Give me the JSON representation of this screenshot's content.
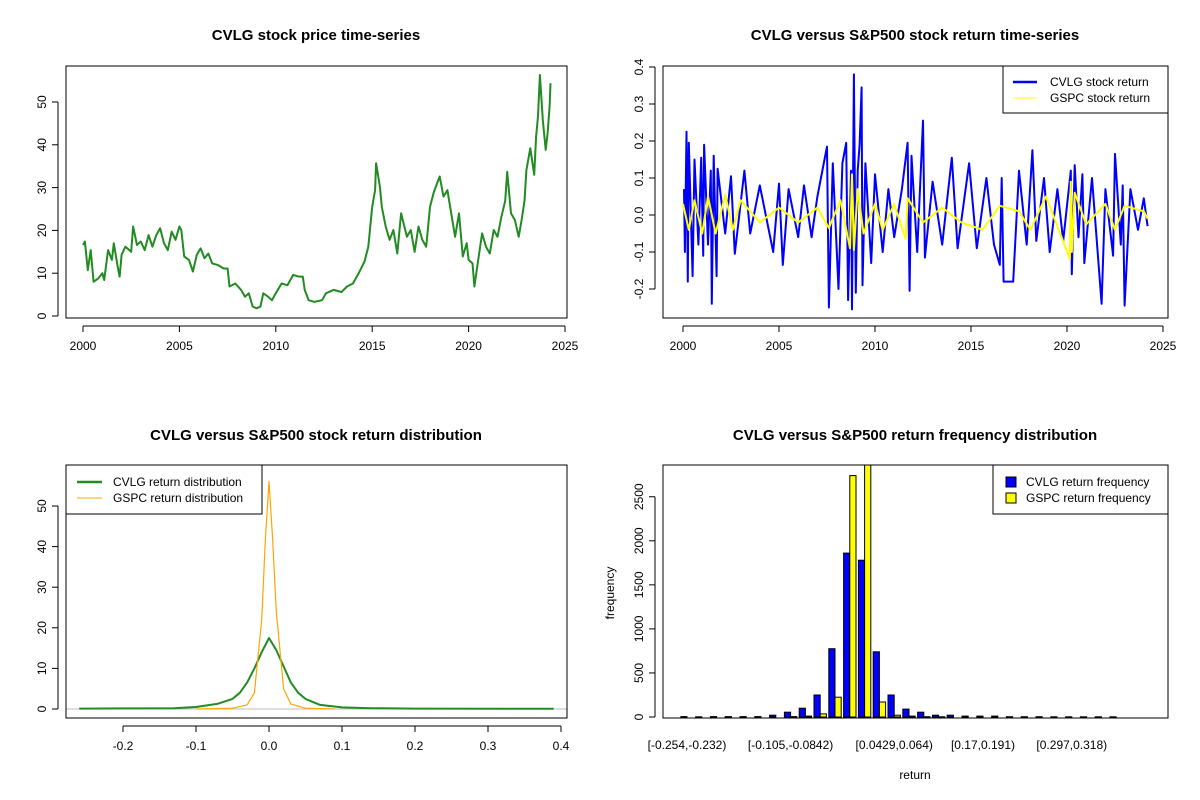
{
  "chart_data": [
    {
      "type": "line",
      "title": "CVLG stock price time-series",
      "xlabel": "",
      "ylabel": "",
      "xlim": [
        1999.2,
        2025.2
      ],
      "ylim": [
        0,
        58
      ],
      "x_ticks": [
        2000,
        2005,
        2010,
        2015,
        2020,
        2025
      ],
      "y_ticks": [
        0,
        10,
        20,
        30,
        40,
        50
      ],
      "colors": {
        "CVLG": "#228b22"
      },
      "series": [
        {
          "x": [
            2000.0,
            2000.1,
            2000.25,
            2000.4,
            2000.55,
            2000.8,
            2001.0,
            2001.1,
            2001.3,
            2001.5,
            2001.6,
            2001.8,
            2001.9,
            2002.0,
            2002.2,
            2002.5,
            2002.6,
            2002.8,
            2003.0,
            2003.2,
            2003.4,
            2003.6,
            2003.8,
            2004.0,
            2004.2,
            2004.4,
            2004.6,
            2004.8,
            2005.0,
            2005.1,
            2005.25,
            2005.5,
            2005.7,
            2005.9,
            2006.1,
            2006.3,
            2006.5,
            2006.7,
            2007.0,
            2007.3,
            2007.5,
            2007.6,
            2007.9,
            2008.2,
            2008.4,
            2008.6,
            2008.8,
            2009.0,
            2009.2,
            2009.35,
            2009.6,
            2009.8,
            2010.0,
            2010.3,
            2010.6,
            2010.9,
            2011.2,
            2011.4,
            2011.5,
            2011.7,
            2012.0,
            2012.4,
            2012.6,
            2013.0,
            2013.4,
            2013.7,
            2014.0,
            2014.3,
            2014.6,
            2014.8,
            2015.0,
            2015.15,
            2015.2,
            2015.4,
            2015.5,
            2015.7,
            2015.9,
            2016.1,
            2016.3,
            2016.5,
            2016.8,
            2017.0,
            2017.2,
            2017.4,
            2017.6,
            2017.8,
            2018.0,
            2018.2,
            2018.5,
            2018.7,
            2018.9,
            2019.1,
            2019.3,
            2019.5,
            2019.7,
            2019.9,
            2020.0,
            2020.2,
            2020.3,
            2020.5,
            2020.7,
            2020.9,
            2021.1,
            2021.3,
            2021.5,
            2021.7,
            2021.9,
            2022.0,
            2022.2,
            2022.4,
            2022.6,
            2022.75,
            2022.9,
            2023.0,
            2023.2,
            2023.4,
            2023.5,
            2023.6,
            2023.7,
            2023.85,
            2024.0,
            2024.1,
            2024.2,
            2024.25
          ],
          "y": [
            16.6,
            17.4,
            10.7,
            15.4,
            8.0,
            8.8,
            10.0,
            8.4,
            15.4,
            13.1,
            17.0,
            11.5,
            9.2,
            14.3,
            16.2,
            15.0,
            20.9,
            16.6,
            17.4,
            15.4,
            18.9,
            16.2,
            18.9,
            20.5,
            17.0,
            15.4,
            19.7,
            17.8,
            20.9,
            20.1,
            13.9,
            13.1,
            10.4,
            14.3,
            15.8,
            13.5,
            14.6,
            12.3,
            11.9,
            11.1,
            11.1,
            6.9,
            7.6,
            6.1,
            4.5,
            5.3,
            2.2,
            1.8,
            2.2,
            5.3,
            4.5,
            3.7,
            5.3,
            7.6,
            7.2,
            9.6,
            9.2,
            9.2,
            6.1,
            3.7,
            3.3,
            3.7,
            5.3,
            6.1,
            5.6,
            6.9,
            7.6,
            10.0,
            12.7,
            16.2,
            25.5,
            29.4,
            35.7,
            30.2,
            25.5,
            20.9,
            17.8,
            20.1,
            14.6,
            24.0,
            18.5,
            20.1,
            15.0,
            20.9,
            17.8,
            16.2,
            25.5,
            29.0,
            32.6,
            27.9,
            29.4,
            24.0,
            18.5,
            24.0,
            13.9,
            17.0,
            13.1,
            12.3,
            6.9,
            13.1,
            19.3,
            16.2,
            14.6,
            20.1,
            18.5,
            23.2,
            26.9,
            33.7,
            24.0,
            22.4,
            18.5,
            22.4,
            26.9,
            34.1,
            39.2,
            33.0,
            41.9,
            46.7,
            56.3,
            45.8,
            38.8,
            42.7,
            48.9,
            54.4
          ]
        }
      ]
    },
    {
      "type": "line",
      "title": "CVLG versus S&P500 stock return time-series",
      "xlabel": "",
      "ylabel": "",
      "xlim": [
        1999.0,
        2025.2
      ],
      "ylim": [
        -0.27,
        0.41
      ],
      "x_ticks": [
        2000,
        2005,
        2010,
        2015,
        2020,
        2025
      ],
      "y_ticks": [
        -0.2,
        -0.1,
        0.0,
        0.1,
        0.2,
        0.3,
        0.4
      ],
      "y_tick_labels": [
        "-0.2",
        "-0.1",
        "0.0",
        "0.1",
        "0.2",
        "0.3",
        "0.4"
      ],
      "legend": {
        "position": "top-right",
        "entries": [
          "CVLG stock return",
          "GSPC stock return"
        ]
      },
      "colors": {
        "CVLG": "#0000ff",
        "GSPC": "#ffff00"
      },
      "series": [
        {
          "name": "CVLG stock return",
          "x": [
            2000.05,
            2000.1,
            2000.18,
            2000.25,
            2000.3,
            2000.5,
            2000.6,
            2000.8,
            2000.95,
            2001.05,
            2001.1,
            2001.3,
            2001.45,
            2001.5,
            2001.6,
            2001.75,
            2001.8,
            2002.2,
            2002.5,
            2002.7,
            2003.2,
            2003.5,
            2004.0,
            2004.7,
            2005.0,
            2005.2,
            2005.5,
            2006.0,
            2006.3,
            2006.7,
            2007.0,
            2007.5,
            2007.6,
            2007.8,
            2008.1,
            2008.3,
            2008.5,
            2008.6,
            2008.75,
            2008.8,
            2008.9,
            2009.0,
            2009.1,
            2009.2,
            2009.3,
            2009.35,
            2009.5,
            2009.8,
            2010.0,
            2010.4,
            2010.7,
            2011.0,
            2011.4,
            2011.7,
            2011.8,
            2011.9,
            2012.2,
            2012.5,
            2012.6,
            2013.0,
            2013.5,
            2014.0,
            2014.3,
            2014.9,
            2015.3,
            2015.8,
            2016.2,
            2016.5,
            2016.6,
            2016.7,
            2017.2,
            2017.5,
            2017.9,
            2018.2,
            2018.4,
            2018.8,
            2019.1,
            2019.5,
            2019.8,
            2020.2,
            2020.25,
            2020.4,
            2020.6,
            2020.8,
            2020.9,
            2021.3,
            2021.8,
            2022.0,
            2022.4,
            2022.5,
            2022.8,
            2022.9,
            2023.0,
            2023.3,
            2023.7,
            2024.0,
            2024.2
          ],
          "y": [
            0.07,
            -0.1,
            0.225,
            -0.18,
            0.195,
            -0.165,
            0.15,
            -0.08,
            0.155,
            -0.11,
            0.19,
            -0.08,
            0.12,
            -0.24,
            0.16,
            -0.165,
            0.125,
            -0.05,
            0.105,
            -0.105,
            0.12,
            -0.05,
            0.08,
            -0.1,
            0.085,
            -0.135,
            0.07,
            -0.06,
            0.08,
            -0.06,
            0.05,
            0.185,
            -0.25,
            0.14,
            -0.2,
            0.14,
            0.195,
            -0.23,
            0.12,
            -0.255,
            0.38,
            -0.21,
            0.12,
            0.19,
            0.345,
            -0.19,
            0.14,
            -0.13,
            0.11,
            -0.1,
            0.07,
            -0.06,
            0.07,
            0.195,
            -0.205,
            0.16,
            -0.1,
            0.255,
            -0.115,
            0.09,
            -0.08,
            0.155,
            -0.09,
            0.14,
            -0.09,
            0.1,
            -0.08,
            -0.135,
            0.1,
            -0.18,
            -0.18,
            0.12,
            -0.08,
            0.175,
            -0.07,
            0.1,
            -0.1,
            0.07,
            -0.07,
            0.12,
            -0.16,
            0.135,
            -0.06,
            0.11,
            -0.13,
            0.1,
            -0.24,
            0.07,
            -0.11,
            0.165,
            -0.08,
            0.08,
            -0.245,
            0.07,
            -0.04,
            0.045,
            -0.03
          ]
        },
        {
          "name": "GSPC stock return",
          "x": [
            2000.0,
            2000.3,
            2000.6,
            2001.0,
            2001.3,
            2001.7,
            2002.2,
            2002.6,
            2003.0,
            2004.0,
            2005.0,
            2006.0,
            2007.0,
            2007.6,
            2008.2,
            2008.7,
            2008.8,
            2008.9,
            2009.1,
            2009.4,
            2010.0,
            2010.4,
            2011.0,
            2011.6,
            2011.7,
            2012.5,
            2013.5,
            2014.5,
            2015.6,
            2016.5,
            2017.5,
            2018.1,
            2018.9,
            2019.5,
            2020.15,
            2020.2,
            2020.25,
            2020.4,
            2021.0,
            2022.0,
            2022.5,
            2023.0,
            2024.0,
            2024.2
          ],
          "y": [
            0.03,
            -0.04,
            0.04,
            -0.05,
            0.05,
            -0.05,
            0.055,
            -0.04,
            0.04,
            -0.02,
            0.02,
            -0.02,
            0.02,
            -0.035,
            0.04,
            -0.09,
            0.11,
            -0.095,
            0.07,
            -0.05,
            0.03,
            -0.04,
            0.03,
            -0.065,
            0.045,
            -0.02,
            0.02,
            -0.02,
            -0.04,
            0.025,
            0.01,
            -0.04,
            0.05,
            -0.03,
            -0.12,
            0.09,
            -0.1,
            0.06,
            -0.025,
            0.03,
            -0.04,
            0.025,
            0.01,
            -0.01
          ]
        }
      ]
    },
    {
      "type": "line",
      "title": "CVLG versus S&P500 stock return distribution",
      "xlabel": "",
      "ylabel": "",
      "xlim": [
        -0.28,
        0.41
      ],
      "ylim": [
        -2,
        58
      ],
      "x_ticks": [
        -0.2,
        -0.1,
        0.0,
        0.1,
        0.2,
        0.3,
        0.4
      ],
      "x_tick_labels": [
        "-0.2",
        "-0.1",
        "0.0",
        "0.1",
        "0.2",
        "0.3",
        "0.4"
      ],
      "y_ticks": [
        0,
        10,
        20,
        30,
        40,
        50
      ],
      "legend": {
        "position": "top-left",
        "entries": [
          "CVLG return distribution",
          "GSPC return distribution"
        ]
      },
      "colors": {
        "CVLG": "#228b22",
        "GSPC": "#ffa500",
        "baseline": "#bebebe"
      },
      "series": [
        {
          "name": "CVLG return distribution",
          "x": [
            -0.26,
            -0.13,
            -0.1,
            -0.07,
            -0.05,
            -0.04,
            -0.03,
            -0.02,
            -0.01,
            0.0,
            0.01,
            0.02,
            0.03,
            0.04,
            0.05,
            0.07,
            0.1,
            0.14,
            0.2,
            0.39
          ],
          "y": [
            0.1,
            0.2,
            0.5,
            1.3,
            2.5,
            4.0,
            6.5,
            10.0,
            14.0,
            17.5,
            14.5,
            10.5,
            6.5,
            4.0,
            2.5,
            1.0,
            0.4,
            0.2,
            0.1,
            0.05
          ]
        },
        {
          "name": "GSPC return distribution",
          "x": [
            -0.1,
            -0.05,
            -0.03,
            -0.02,
            -0.01,
            -0.005,
            0.0,
            0.005,
            0.01,
            0.02,
            0.03,
            0.05,
            0.09
          ],
          "y": [
            0,
            0.2,
            1.0,
            4.0,
            22,
            42,
            56,
            42,
            24,
            5,
            1.2,
            0.2,
            0
          ]
        }
      ]
    },
    {
      "type": "bar",
      "title": "CVLG versus S&P500 return frequency distribution",
      "xlabel": "return",
      "ylabel": "frequency",
      "ylim": [
        0,
        2860
      ],
      "y_ticks": [
        0,
        500,
        1000,
        1500,
        2000,
        2500
      ],
      "tick_labels": [
        {
          "bin": 1,
          "label": "[-0.254,-0.232)"
        },
        {
          "bin": 8,
          "label": "[-0.105,-0.0842)"
        },
        {
          "bin": 15,
          "label": "[0.0429,0.064)"
        },
        {
          "bin": 21,
          "label": "[0.17,0.191)"
        },
        {
          "bin": 27,
          "label": "[0.297,0.318)"
        }
      ],
      "legend": {
        "position": "top-right",
        "entries": [
          "CVLG return frequency",
          "GSPC return frequency"
        ]
      },
      "colors": {
        "CVLG": "#0000ff",
        "GSPC": "#ffff00"
      },
      "series": [
        {
          "name": "CVLG return frequency",
          "values": [
            5,
            2,
            5,
            5,
            5,
            5,
            20,
            55,
            100,
            250,
            775,
            1860,
            1780,
            740,
            250,
            90,
            55,
            20,
            20,
            10,
            10,
            10,
            3,
            3,
            3,
            2,
            2,
            2,
            2,
            2
          ]
        },
        {
          "name": "GSPC return frequency",
          "values": [
            0,
            0,
            0,
            0,
            0,
            0,
            0,
            5,
            10,
            35,
            225,
            2740,
            2900,
            170,
            20,
            10,
            3,
            2,
            0,
            0,
            0,
            0,
            0,
            0,
            0,
            0,
            0,
            0,
            0,
            0
          ]
        }
      ]
    }
  ]
}
